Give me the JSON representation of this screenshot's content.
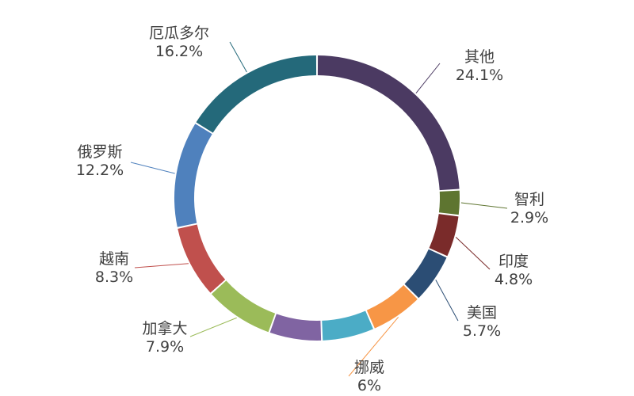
{
  "chart_data": {
    "type": "pie",
    "variant": "donut",
    "title": "",
    "legend": "none",
    "slices": [
      {
        "name": "其他",
        "value": 24.1,
        "label": "24.1%",
        "color": "#4B3A62"
      },
      {
        "name": "智利",
        "value": 2.9,
        "label": "2.9%",
        "color": "#5E7530"
      },
      {
        "name": "印度",
        "value": 4.8,
        "label": "4.8%",
        "color": "#7A2B2A"
      },
      {
        "name": "美国",
        "value": 5.7,
        "label": "5.7%",
        "color": "#2B4D74"
      },
      {
        "name": "挪威",
        "value": 6.0,
        "label": "6%",
        "color": "#F79646"
      },
      {
        "name": "",
        "value": 6.0,
        "label": "",
        "color": "#4BACC6"
      },
      {
        "name": "",
        "value": 6.0,
        "label": "",
        "color": "#8064A2"
      },
      {
        "name": "加拿大",
        "value": 7.9,
        "label": "7.9%",
        "color": "#9BBB59"
      },
      {
        "name": "越南",
        "value": 8.3,
        "label": "8.3%",
        "color": "#C0504D"
      },
      {
        "name": "俄罗斯",
        "value": 12.2,
        "label": "12.2%",
        "color": "#4F81BD"
      },
      {
        "name": "厄瓜多尔",
        "value": 16.2,
        "label": "16.2%",
        "color": "#24697A"
      }
    ]
  }
}
